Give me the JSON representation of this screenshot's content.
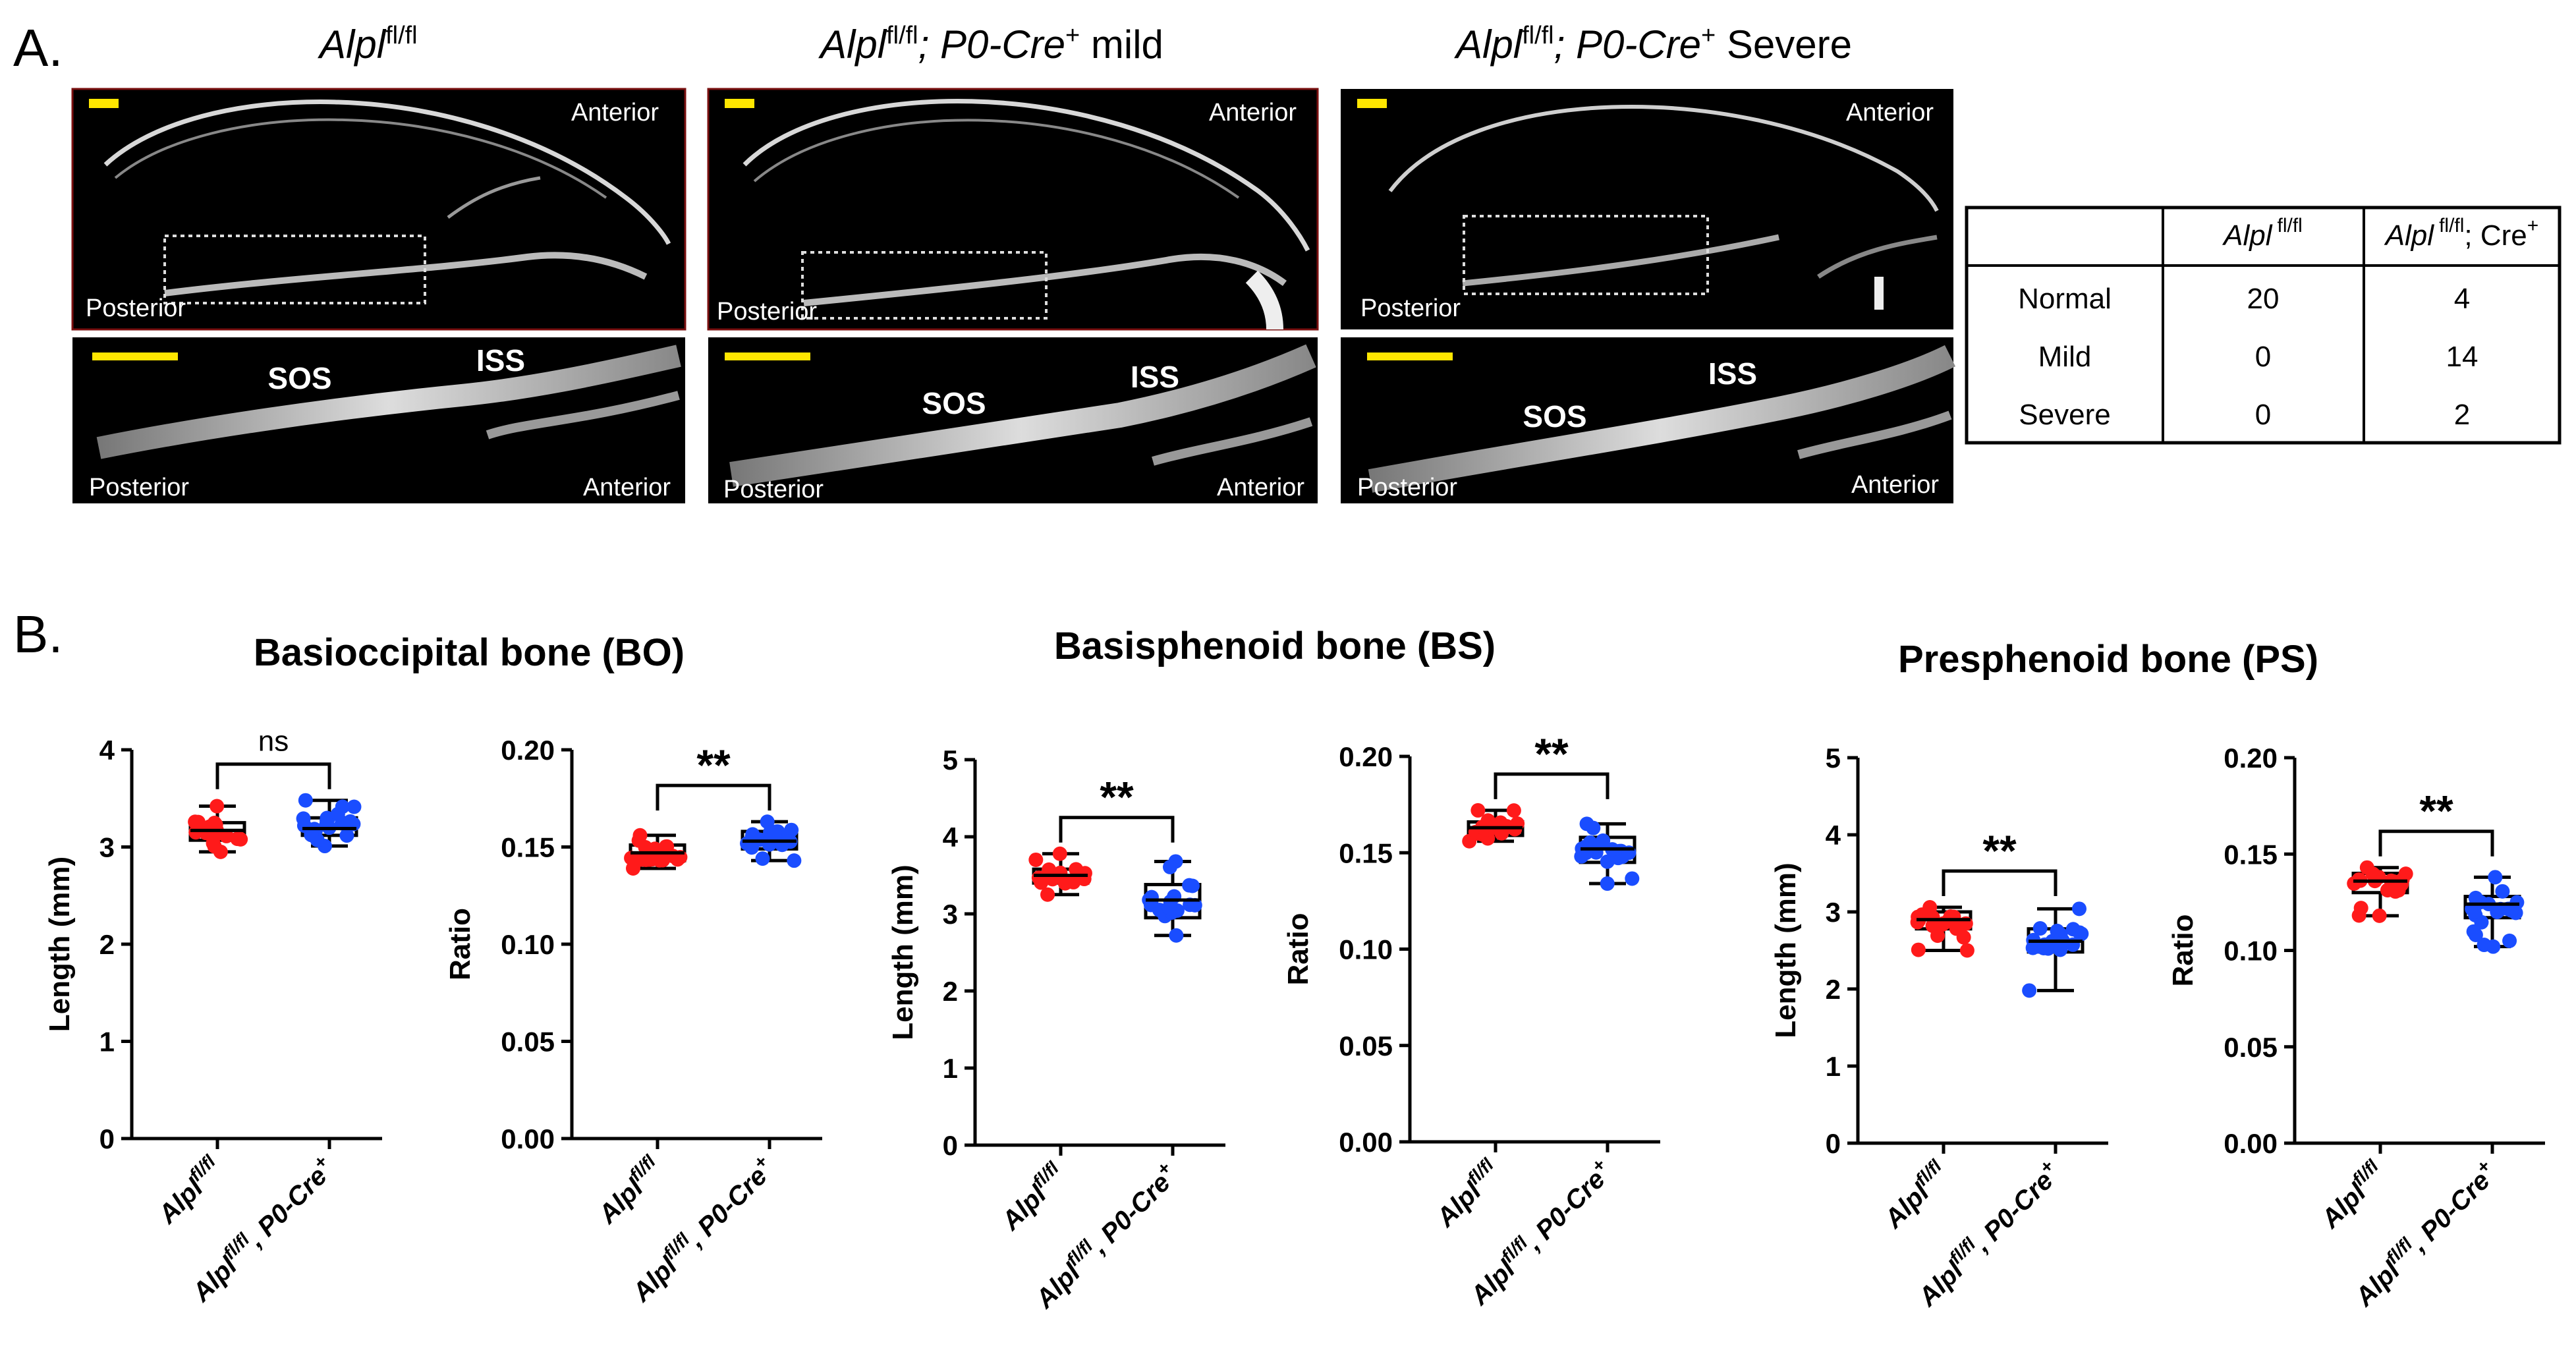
{
  "panel_a": {
    "label": "A.",
    "columns": [
      {
        "gene": "Alpl",
        "sup": "fl/fl",
        "cre": "",
        "crePlus": "",
        "suffix": ""
      },
      {
        "gene": "Alpl",
        "sup": "fl/fl",
        "cre": "; P0-Cre",
        "crePlus": "+",
        "suffix": " mild"
      },
      {
        "gene": "Alpl",
        "sup": "fl/fl",
        "cre": "; P0-Cre",
        "crePlus": "+",
        "suffix": " Severe"
      }
    ],
    "scan_labels": {
      "anterior": "Anterior",
      "posterior": "Posterior",
      "sos": "SOS",
      "iss": "ISS"
    },
    "table": {
      "header_gene": "Alpl",
      "col1_sup": "fl/fl",
      "col2_sup": "fl/fl",
      "col2_suffix": "; Cre",
      "col2_plus": "+",
      "rows": [
        {
          "label": "Normal",
          "a": "20",
          "b": "4"
        },
        {
          "label": "Mild",
          "a": "0",
          "b": "14"
        },
        {
          "label": "Severe",
          "a": "0",
          "b": "2"
        }
      ]
    }
  },
  "panel_b": {
    "label": "B."
  },
  "group_titles": [
    "Basioccipital bone (BO)",
    "Basisphenoid bone (BS)",
    "Presphenoid bone (PS)"
  ],
  "group_colors": [
    "#ff1a1a",
    "#1a4dff"
  ],
  "chart_data": [
    {
      "type": "box",
      "group_title": "Basioccipital bone (BO)",
      "ylabel": "Length (mm)",
      "ylim": [
        0,
        4
      ],
      "yticks": [
        "0",
        "1",
        "2",
        "3",
        "4"
      ],
      "significance": "ns",
      "categories": [
        "Alpl fl/fl",
        "Alpl fl/fl; P0-Cre+"
      ],
      "boxes": [
        {
          "min": 2.95,
          "q1": 3.07,
          "median": 3.17,
          "q3": 3.25,
          "max": 3.42
        },
        {
          "min": 3.01,
          "q1": 3.12,
          "median": 3.19,
          "q3": 3.3,
          "max": 3.48
        }
      ]
    },
    {
      "type": "box",
      "group_title": "Basioccipital bone (BO)",
      "ylabel": "Ratio",
      "ylim": [
        0,
        0.2
      ],
      "yticks": [
        "0.00",
        "0.05",
        "0.10",
        "0.15",
        "0.20"
      ],
      "significance": "**",
      "categories": [
        "Alpl fl/fl",
        "Alpl fl/fl; P0-Cre+"
      ],
      "boxes": [
        {
          "min": 0.139,
          "q1": 0.143,
          "median": 0.147,
          "q3": 0.151,
          "max": 0.156
        },
        {
          "min": 0.143,
          "q1": 0.149,
          "median": 0.153,
          "q3": 0.158,
          "max": 0.163
        }
      ]
    },
    {
      "type": "box",
      "group_title": "Basisphenoid bone (BS)",
      "ylabel": "Length (mm)",
      "ylim": [
        0,
        5
      ],
      "yticks": [
        "0",
        "1",
        "2",
        "3",
        "4",
        "5"
      ],
      "significance": "**",
      "categories": [
        "Alpl fl/fl",
        "Alpl fl/fl; P0-Cre+"
      ],
      "boxes": [
        {
          "min": 3.25,
          "q1": 3.4,
          "median": 3.5,
          "q3": 3.58,
          "max": 3.78
        },
        {
          "min": 2.72,
          "q1": 2.95,
          "median": 3.18,
          "q3": 3.38,
          "max": 3.68
        }
      ]
    },
    {
      "type": "box",
      "group_title": "Basisphenoid bone (BS)",
      "ylabel": "Ratio",
      "ylim": [
        0,
        0.2
      ],
      "yticks": [
        "0.00",
        "0.05",
        "0.10",
        "0.15",
        "0.20"
      ],
      "significance": "**",
      "categories": [
        "Alpl fl/fl",
        "Alpl fl/fl; P0-Cre+"
      ],
      "boxes": [
        {
          "min": 0.156,
          "q1": 0.159,
          "median": 0.163,
          "q3": 0.166,
          "max": 0.172
        },
        {
          "min": 0.134,
          "q1": 0.145,
          "median": 0.152,
          "q3": 0.158,
          "max": 0.165
        }
      ]
    },
    {
      "type": "box",
      "group_title": "Presphenoid bone (PS)",
      "ylabel": "Length (mm)",
      "ylim": [
        0,
        5
      ],
      "yticks": [
        "0",
        "1",
        "2",
        "3",
        "4",
        "5"
      ],
      "significance": "**",
      "categories": [
        "Alpl fl/fl",
        "Alpl fl/fl; P0-Cre+"
      ],
      "boxes": [
        {
          "min": 2.5,
          "q1": 2.78,
          "median": 2.9,
          "q3": 3.0,
          "max": 3.06
        },
        {
          "min": 1.98,
          "q1": 2.48,
          "median": 2.62,
          "q3": 2.78,
          "max": 3.04
        }
      ]
    },
    {
      "type": "box",
      "group_title": "Presphenoid bone (PS)",
      "ylabel": "Ratio",
      "ylim": [
        0,
        0.2
      ],
      "yticks": [
        "0.00",
        "0.05",
        "0.10",
        "0.15",
        "0.20"
      ],
      "significance": "**",
      "categories": [
        "Alpl fl/fl",
        "Alpl fl/fl; P0-Cre+"
      ],
      "boxes": [
        {
          "min": 0.118,
          "q1": 0.13,
          "median": 0.136,
          "q3": 0.14,
          "max": 0.143
        },
        {
          "min": 0.102,
          "q1": 0.117,
          "median": 0.124,
          "q3": 0.128,
          "max": 0.138
        }
      ]
    }
  ]
}
